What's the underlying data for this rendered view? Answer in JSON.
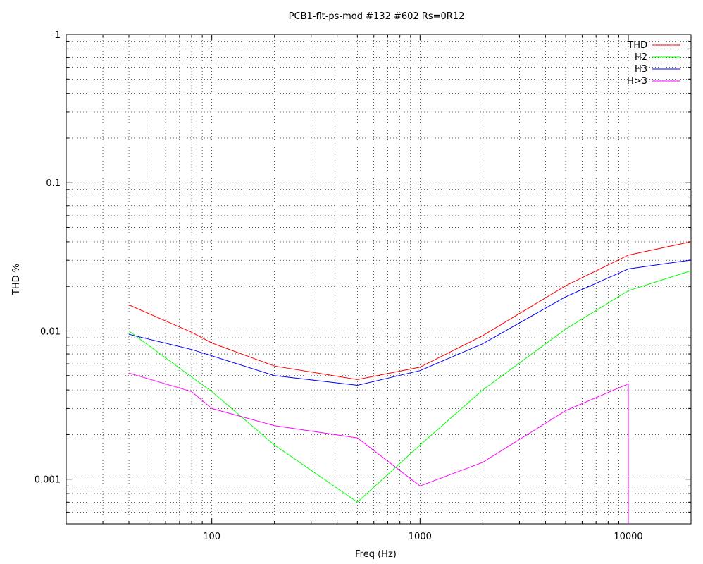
{
  "chart_data": {
    "type": "line",
    "title": "PCB1-flt-ps-mod #132 #602 Rs=0R12",
    "xlabel": "Freq (Hz)",
    "ylabel": "THD %",
    "x_scale": "log",
    "y_scale": "log",
    "xlim": [
      20,
      20000
    ],
    "ylim": [
      0.0005,
      1
    ],
    "x_ticks": [
      100,
      1000,
      10000
    ],
    "x_tick_labels": [
      "100",
      "1000",
      "10000"
    ],
    "y_ticks": [
      0.001,
      0.01,
      0.1,
      1
    ],
    "y_tick_labels": [
      "0.001",
      "0.01",
      "0.1",
      "1"
    ],
    "grid": true,
    "legend_position": "top-right",
    "series": [
      {
        "name": "THD",
        "color": "#ff0000",
        "x": [
          40,
          80,
          100,
          200,
          500,
          1000,
          2000,
          5000,
          10000,
          20000
        ],
        "y": [
          0.015,
          0.0098,
          0.0083,
          0.0058,
          0.0047,
          0.0057,
          0.0093,
          0.0202,
          0.0325,
          0.04
        ]
      },
      {
        "name": "H2",
        "color": "#00ff00",
        "x": [
          40,
          80,
          100,
          200,
          500,
          1000,
          2000,
          5000,
          10000,
          20000
        ],
        "y": [
          0.01,
          0.0049,
          0.0039,
          0.0017,
          0.0007,
          0.0017,
          0.004,
          0.0103,
          0.0187,
          0.0255
        ]
      },
      {
        "name": "H3",
        "color": "#0000ff",
        "x": [
          40,
          80,
          100,
          200,
          500,
          1000,
          2000,
          5000,
          10000,
          20000
        ],
        "y": [
          0.0095,
          0.0075,
          0.0068,
          0.005,
          0.0043,
          0.0054,
          0.0082,
          0.017,
          0.0262,
          0.0301
        ]
      },
      {
        "name": "H>3",
        "color": "#ff00ff",
        "x": [
          40,
          80,
          100,
          200,
          500,
          1000,
          2000,
          5000,
          10000,
          10000
        ],
        "y": [
          0.0052,
          0.0039,
          0.003,
          0.0023,
          0.0019,
          0.0009,
          0.0013,
          0.0029,
          0.0044,
          0.0005
        ]
      }
    ]
  }
}
